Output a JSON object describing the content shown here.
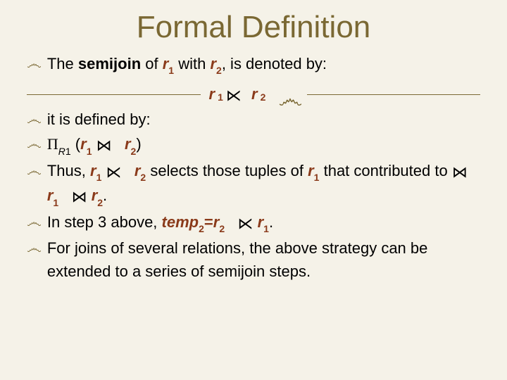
{
  "title": "Formal Definition",
  "colors": {
    "background": "#f5f2e8",
    "title": "#7a6833",
    "bullet": "#7a6833",
    "accent": "#8a3a1a",
    "text": "#000000",
    "divider": "#7a6833"
  },
  "typography": {
    "title_fontsize": 44,
    "body_fontsize": 22,
    "sub_fontsize": 14,
    "font_family": "Arial"
  },
  "divider": {
    "r": "r",
    "s1": "1",
    "s2": "2",
    "op": "⋉"
  },
  "bullets": {
    "b1": {
      "t1": "The ",
      "t2": "semijoin",
      "t3": " of ",
      "r": "r",
      "s1": "1",
      "t4": " with ",
      "s2": "2",
      "t5": ", is denoted by:"
    },
    "b2": {
      "text": "it is defined by:"
    },
    "b3": {
      "pi": "Π",
      "R": "R",
      "s1": "1",
      "lp": " (",
      "r": "r",
      "s1b": "1",
      "op": "⋈",
      "s2": "2",
      "rp": ")"
    },
    "b4": {
      "t1": "Thus, ",
      "r": "r",
      "s1": "1",
      "op": "⋉",
      "s2": "2",
      "t2": " selects those tuples of ",
      "s1b": "1",
      "t3": " that contributed to ",
      "op2": "⋈",
      "s1c": "1",
      "op3": "⋈",
      "s2b": "2",
      "dot": "."
    },
    "b5": {
      "t1": "In step 3 above, ",
      "temp": "temp",
      "s2": "2",
      "eq": "=",
      "r": "r",
      "s2b": "2",
      "op": "⋉",
      "s1": "1",
      "dot": "."
    },
    "b6": {
      "text": "For joins of several relations, the above strategy can be extended to a series of semijoin steps."
    }
  }
}
